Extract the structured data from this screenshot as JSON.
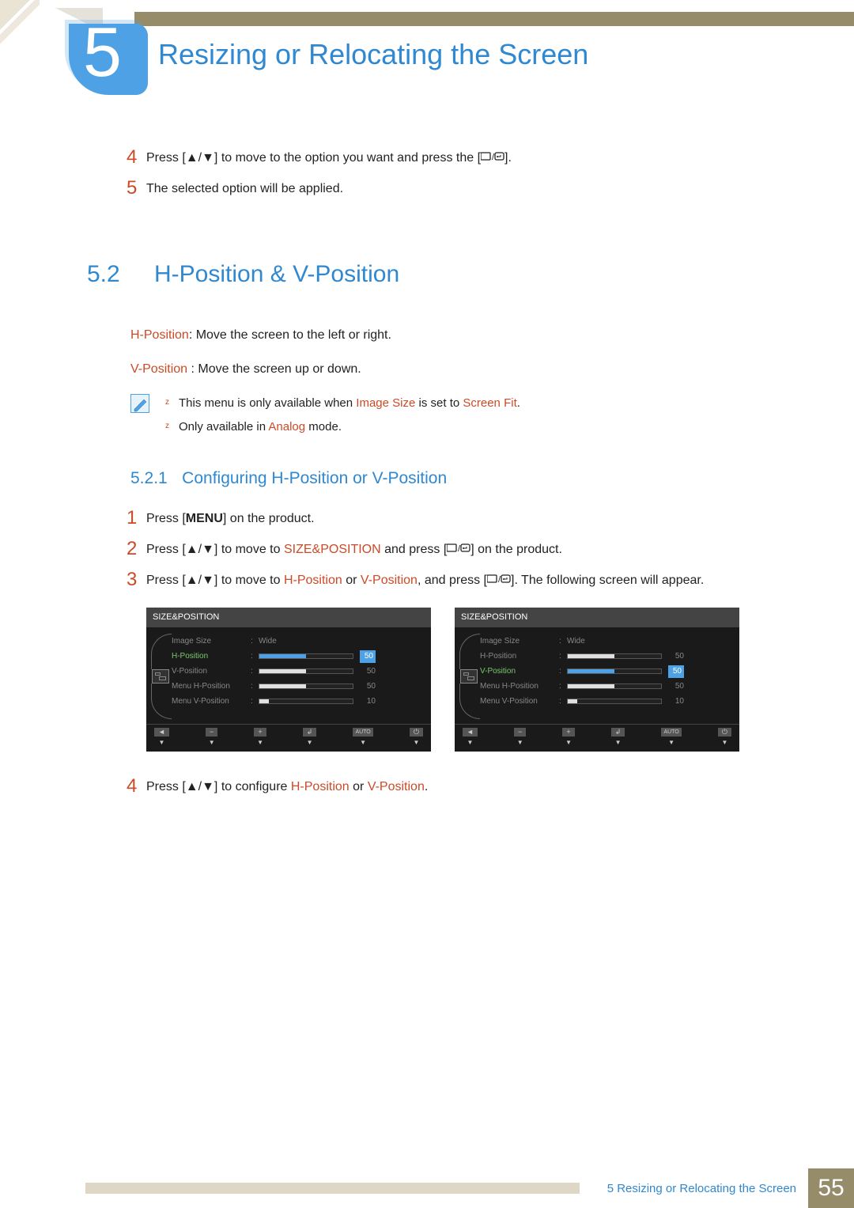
{
  "chapter": {
    "number": "5",
    "title": "Resizing or Relocating the Screen"
  },
  "topSteps": [
    {
      "n": "4",
      "pre": "Press [",
      "mid": "] to move to the option you want and press the [",
      "post": "]."
    },
    {
      "n": "5",
      "text": "The selected option will be applied."
    }
  ],
  "section": {
    "num": "5.2",
    "title": "H-Position & V-Position"
  },
  "paras": {
    "hpos_label": "H-Position",
    "hpos_text": ": Move the screen to the left or right.",
    "vpos_label": "V-Position",
    "vpos_text": " : Move the screen up or down."
  },
  "notes": {
    "l1_pre": "This menu is only available when ",
    "l1_red": "Image Size",
    "l1_mid": " is set to ",
    "l1_red2": "Screen Fit",
    "l1_post": ".",
    "l2_pre": "Only available in ",
    "l2_red": "Analog",
    "l2_post": " mode."
  },
  "subsection": {
    "num": "5.2.1",
    "title": "Configuring H-Position or V-Position"
  },
  "steps": [
    {
      "n": "1",
      "parts": [
        [
          "",
          "Press ["
        ],
        [
          "b",
          "MENU"
        ],
        [
          "",
          "] on the product."
        ]
      ]
    },
    {
      "n": "2",
      "parts": [
        [
          "",
          "Press ["
        ],
        [
          "sym",
          "ud"
        ],
        [
          "",
          "] to move to "
        ],
        [
          "r",
          "SIZE&POSITION"
        ],
        [
          "",
          " and press ["
        ],
        [
          "sym",
          "oe"
        ],
        [
          "",
          "] on the product."
        ]
      ]
    },
    {
      "n": "3",
      "parts": [
        [
          "",
          "Press ["
        ],
        [
          "sym",
          "ud"
        ],
        [
          "",
          "] to move to "
        ],
        [
          "r",
          "H-Position"
        ],
        [
          "",
          " or "
        ],
        [
          "r",
          "V-Position"
        ],
        [
          "",
          ", and press ["
        ],
        [
          "sym",
          "oe"
        ],
        [
          "",
          "]. The following screen will appear."
        ]
      ]
    }
  ],
  "step4": {
    "n": "4",
    "parts": [
      [
        "",
        "Press ["
      ],
      [
        "sym",
        "ud"
      ],
      [
        "",
        "] to configure "
      ],
      [
        "r",
        "H-Position"
      ],
      [
        "",
        " or "
      ],
      [
        "r",
        "V-Position"
      ],
      [
        "",
        "."
      ]
    ]
  },
  "osd": {
    "title": "SIZE&POSITION",
    "rows": [
      {
        "label": "Image Size",
        "type": "text",
        "value": "Wide"
      },
      {
        "label": "H-Position",
        "type": "slider",
        "value": 50,
        "fill": 50
      },
      {
        "label": "V-Position",
        "type": "slider",
        "value": 50,
        "fill": 50
      },
      {
        "label": "Menu H-Position",
        "type": "slider",
        "value": 50,
        "fill": 50
      },
      {
        "label": "Menu V-Position",
        "type": "slider",
        "value": 10,
        "fill": 10
      }
    ],
    "highlightLeft": 1,
    "highlightRight": 2,
    "footerBtns": [
      "◄",
      "−",
      "+",
      "↲",
      "AUTO",
      "⏻"
    ]
  },
  "footer": {
    "text": "5 Resizing or Relocating the Screen",
    "page": "55"
  },
  "colors": {
    "blue": "#2f88d0",
    "badge": "#4da1e4",
    "red": "#cc4a27",
    "tan": "#978c6a",
    "tanLight": "#ded7c6",
    "osdBg": "#1a1a1a",
    "osdHeader": "#444444",
    "highlightGreen": "#7bc96f",
    "highlightBlue": "#4da1e4"
  }
}
